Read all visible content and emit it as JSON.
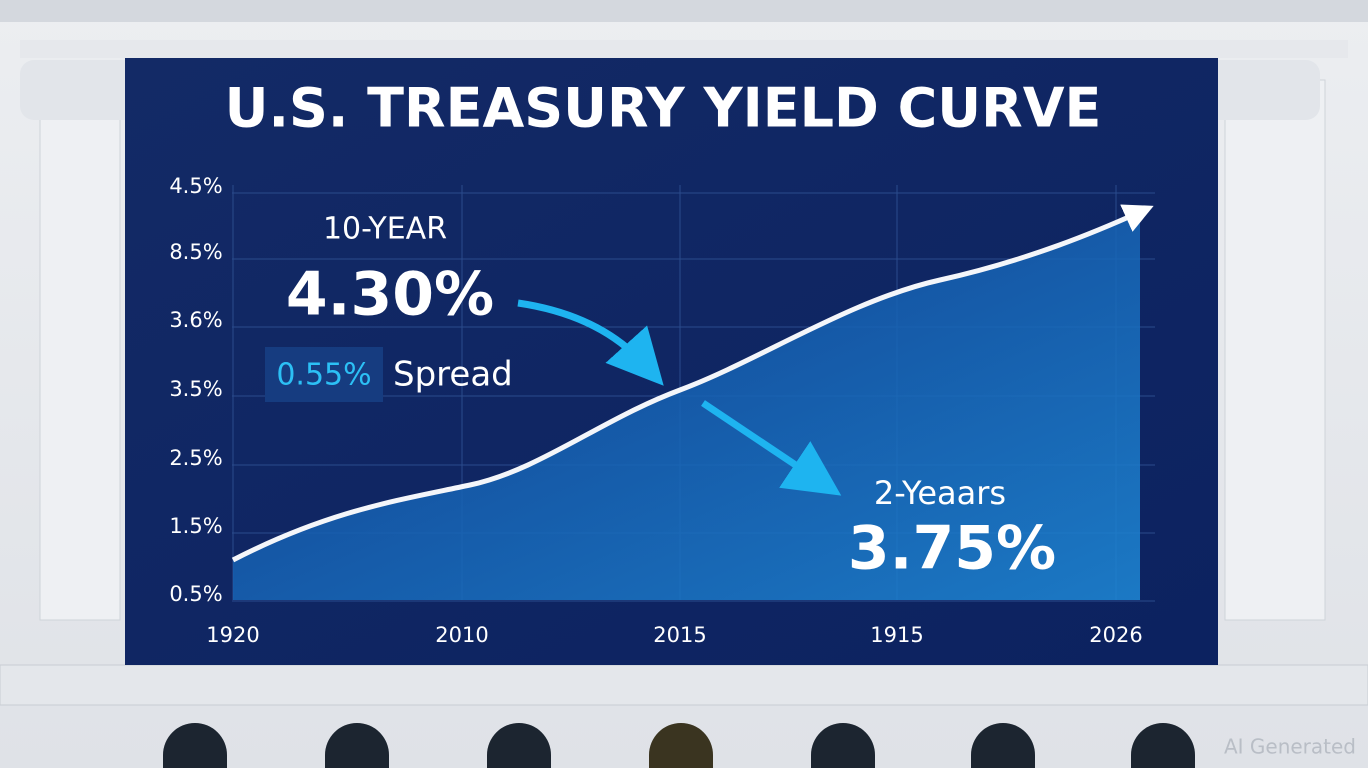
{
  "title": "U.S. TREASURY YIELD CURVE",
  "y_axis_labels": [
    "4.5%",
    "8.5%",
    "3.6%",
    "3.5%",
    "2.5%",
    "1.5%",
    "0.5%"
  ],
  "x_axis_labels": [
    "1920",
    "2010",
    "2015",
    "1915",
    "2026"
  ],
  "ten_year": {
    "label": "10-YEAR",
    "value": "4.30%"
  },
  "spread": {
    "value": "0.55%",
    "label": "Spread"
  },
  "two_year": {
    "label": "2-Yeaars",
    "value": "3.75%"
  },
  "watermark": "AI Generated"
}
